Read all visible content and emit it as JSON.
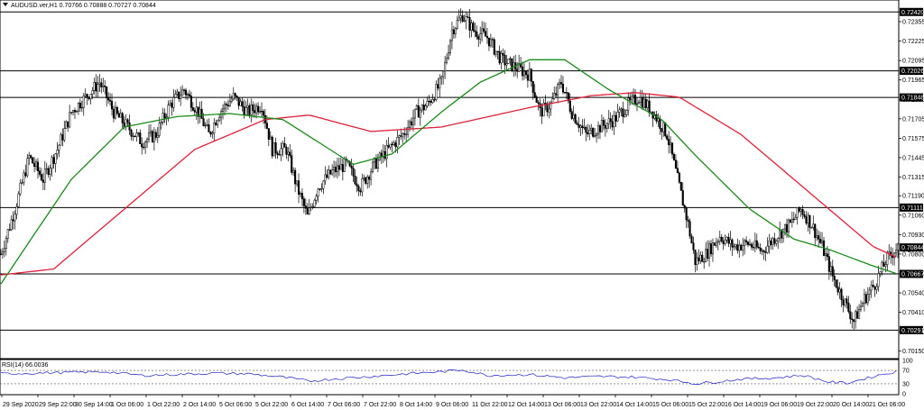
{
  "header": {
    "symbol_line": "AUDUSD.ver,H1  0.70766 0.70888 0.70727 0.70844",
    "rsi_label": "RSI(14) 66.0036"
  },
  "colors": {
    "bull_candle": "#000000",
    "bear_candle": "#000000",
    "ma_fast": "#1a8a1a",
    "ma_slow": "#e0203a",
    "rsi_line": "#1c1cc8",
    "level_line": "#000000",
    "level_label_bg": "#000000"
  },
  "chart_data": [
    {
      "type": "candlestick",
      "title": "AUDUSD.ver,H1",
      "ylim": [
        0.701,
        0.725
      ],
      "y_ticks": [
        "0.72420",
        "0.72355",
        "0.72225",
        "0.72095",
        "0.71965",
        "0.71835",
        "0.71705",
        "0.71575",
        "0.71445",
        "0.71315",
        "0.71190",
        "0.71060",
        "0.70930",
        "0.70800",
        "0.70670",
        "0.70540",
        "0.70410",
        "0.70280",
        "0.70150"
      ],
      "y_tick_values": [
        0.7242,
        0.72355,
        0.72225,
        0.72095,
        0.71965,
        0.71835,
        0.71705,
        0.71575,
        0.71445,
        0.71315,
        0.7119,
        0.7106,
        0.7093,
        0.708,
        0.7067,
        0.7054,
        0.7041,
        0.7028,
        0.7015
      ],
      "x_ticks": [
        "29 Sep 2020",
        "29 Sep 22:00",
        "30 Sep 14:00",
        "1 Oct 06:00",
        "1 Oct 22:00",
        "2 Oct 14:00",
        "5 Oct 06:00",
        "5 Oct 22:00",
        "6 Oct 14:00",
        "7 Oct 06:00",
        "7 Oct 22:00",
        "8 Oct 14:00",
        "9 Oct 06:00",
        "11 Oct 22:00",
        "12 Oct 14:00",
        "13 Oct 06:00",
        "13 Oct 22:00",
        "14 Oct 14:00",
        "15 Oct 06:00",
        "15 Oct 22:00",
        "16 Oct 14:00",
        "19 Oct 06:00",
        "19 Oct 22:00",
        "20 Oct 14:00",
        "21 Oct 06:00"
      ],
      "horizontal_levels": [
        {
          "label": "0.72420",
          "value": 0.7242
        },
        {
          "label": "0.72026",
          "value": 0.72026
        },
        {
          "label": "0.71848",
          "value": 0.71848
        },
        {
          "label": "0.71111",
          "value": 0.71111
        },
        {
          "label": "0.70667",
          "value": 0.70667
        },
        {
          "label": "0.70291",
          "value": 0.70291
        }
      ],
      "current_price": {
        "label": "0.70844",
        "value": 0.70844
      },
      "close_anchors": [
        [
          0,
          0.708
        ],
        [
          8,
          0.711
        ],
        [
          16,
          0.7145
        ],
        [
          24,
          0.713
        ],
        [
          32,
          0.715
        ],
        [
          40,
          0.7175
        ],
        [
          48,
          0.7185
        ],
        [
          56,
          0.7195
        ],
        [
          64,
          0.7175
        ],
        [
          72,
          0.7165
        ],
        [
          80,
          0.7155
        ],
        [
          88,
          0.716
        ],
        [
          96,
          0.718
        ],
        [
          104,
          0.719
        ],
        [
          112,
          0.7175
        ],
        [
          118,
          0.716
        ],
        [
          124,
          0.7175
        ],
        [
          132,
          0.7185
        ],
        [
          140,
          0.7175
        ],
        [
          148,
          0.718
        ],
        [
          154,
          0.715
        ],
        [
          162,
          0.715
        ],
        [
          168,
          0.7125
        ],
        [
          174,
          0.7105
        ],
        [
          180,
          0.7125
        ],
        [
          188,
          0.7135
        ],
        [
          196,
          0.714
        ],
        [
          204,
          0.7125
        ],
        [
          212,
          0.714
        ],
        [
          220,
          0.715
        ],
        [
          228,
          0.716
        ],
        [
          236,
          0.7175
        ],
        [
          242,
          0.718
        ],
        [
          250,
          0.7195
        ],
        [
          256,
          0.723
        ],
        [
          262,
          0.724
        ],
        [
          268,
          0.723
        ],
        [
          276,
          0.7225
        ],
        [
          284,
          0.721
        ],
        [
          292,
          0.7205
        ],
        [
          300,
          0.72
        ],
        [
          306,
          0.7175
        ],
        [
          312,
          0.718
        ],
        [
          318,
          0.7195
        ],
        [
          324,
          0.7175
        ],
        [
          332,
          0.716
        ],
        [
          340,
          0.7165
        ],
        [
          348,
          0.717
        ],
        [
          356,
          0.718
        ],
        [
          362,
          0.7185
        ],
        [
          370,
          0.7175
        ],
        [
          378,
          0.716
        ],
        [
          384,
          0.713
        ],
        [
          390,
          0.71
        ],
        [
          394,
          0.7075
        ],
        [
          400,
          0.708
        ],
        [
          408,
          0.7092
        ],
        [
          416,
          0.7085
        ],
        [
          424,
          0.7087
        ],
        [
          432,
          0.7082
        ],
        [
          440,
          0.7092
        ],
        [
          448,
          0.71
        ],
        [
          454,
          0.711
        ],
        [
          460,
          0.71
        ],
        [
          466,
          0.7085
        ],
        [
          472,
          0.7065
        ],
        [
          478,
          0.705
        ],
        [
          484,
          0.7035
        ],
        [
          490,
          0.705
        ],
        [
          496,
          0.706
        ],
        [
          502,
          0.7075
        ],
        [
          508,
          0.7084
        ]
      ],
      "ma_fast_anchors": [
        [
          0,
          0.706
        ],
        [
          40,
          0.713
        ],
        [
          70,
          0.7165
        ],
        [
          100,
          0.7172
        ],
        [
          130,
          0.7174
        ],
        [
          160,
          0.717
        ],
        [
          200,
          0.714
        ],
        [
          222,
          0.7147
        ],
        [
          250,
          0.7175
        ],
        [
          272,
          0.7195
        ],
        [
          300,
          0.721
        ],
        [
          320,
          0.721
        ],
        [
          345,
          0.719
        ],
        [
          375,
          0.717
        ],
        [
          395,
          0.7145
        ],
        [
          425,
          0.711
        ],
        [
          450,
          0.709
        ],
        [
          470,
          0.7083
        ],
        [
          495,
          0.7072
        ],
        [
          508,
          0.7067
        ]
      ],
      "ma_slow_anchors": [
        [
          0,
          0.7066
        ],
        [
          30,
          0.707
        ],
        [
          70,
          0.711
        ],
        [
          110,
          0.715
        ],
        [
          150,
          0.717
        ],
        [
          175,
          0.7173
        ],
        [
          210,
          0.7162
        ],
        [
          250,
          0.7165
        ],
        [
          300,
          0.7178
        ],
        [
          335,
          0.7186
        ],
        [
          360,
          0.7188
        ],
        [
          385,
          0.7185
        ],
        [
          420,
          0.716
        ],
        [
          450,
          0.713
        ],
        [
          475,
          0.7105
        ],
        [
          495,
          0.7085
        ],
        [
          508,
          0.7078
        ]
      ]
    },
    {
      "type": "line",
      "title": "RSI(14) 66.0036",
      "ylim": [
        0,
        100
      ],
      "y_ticks": [
        "100",
        "70",
        "30",
        "0"
      ],
      "y_tick_values": [
        100,
        70,
        30,
        0
      ],
      "reference_levels": [
        70,
        30
      ],
      "current_value": 66.0036,
      "rsi_anchors": [
        [
          0,
          60
        ],
        [
          20,
          62
        ],
        [
          40,
          64
        ],
        [
          60,
          66
        ],
        [
          80,
          55
        ],
        [
          100,
          58
        ],
        [
          120,
          62
        ],
        [
          140,
          60
        ],
        [
          160,
          50
        ],
        [
          175,
          38
        ],
        [
          190,
          45
        ],
        [
          210,
          52
        ],
        [
          230,
          60
        ],
        [
          250,
          66
        ],
        [
          262,
          72
        ],
        [
          276,
          55
        ],
        [
          300,
          58
        ],
        [
          320,
          48
        ],
        [
          340,
          52
        ],
        [
          360,
          50
        ],
        [
          380,
          42
        ],
        [
          395,
          30
        ],
        [
          420,
          44
        ],
        [
          440,
          48
        ],
        [
          455,
          56
        ],
        [
          470,
          35
        ],
        [
          480,
          32
        ],
        [
          490,
          45
        ],
        [
          500,
          58
        ],
        [
          508,
          66
        ]
      ]
    }
  ]
}
